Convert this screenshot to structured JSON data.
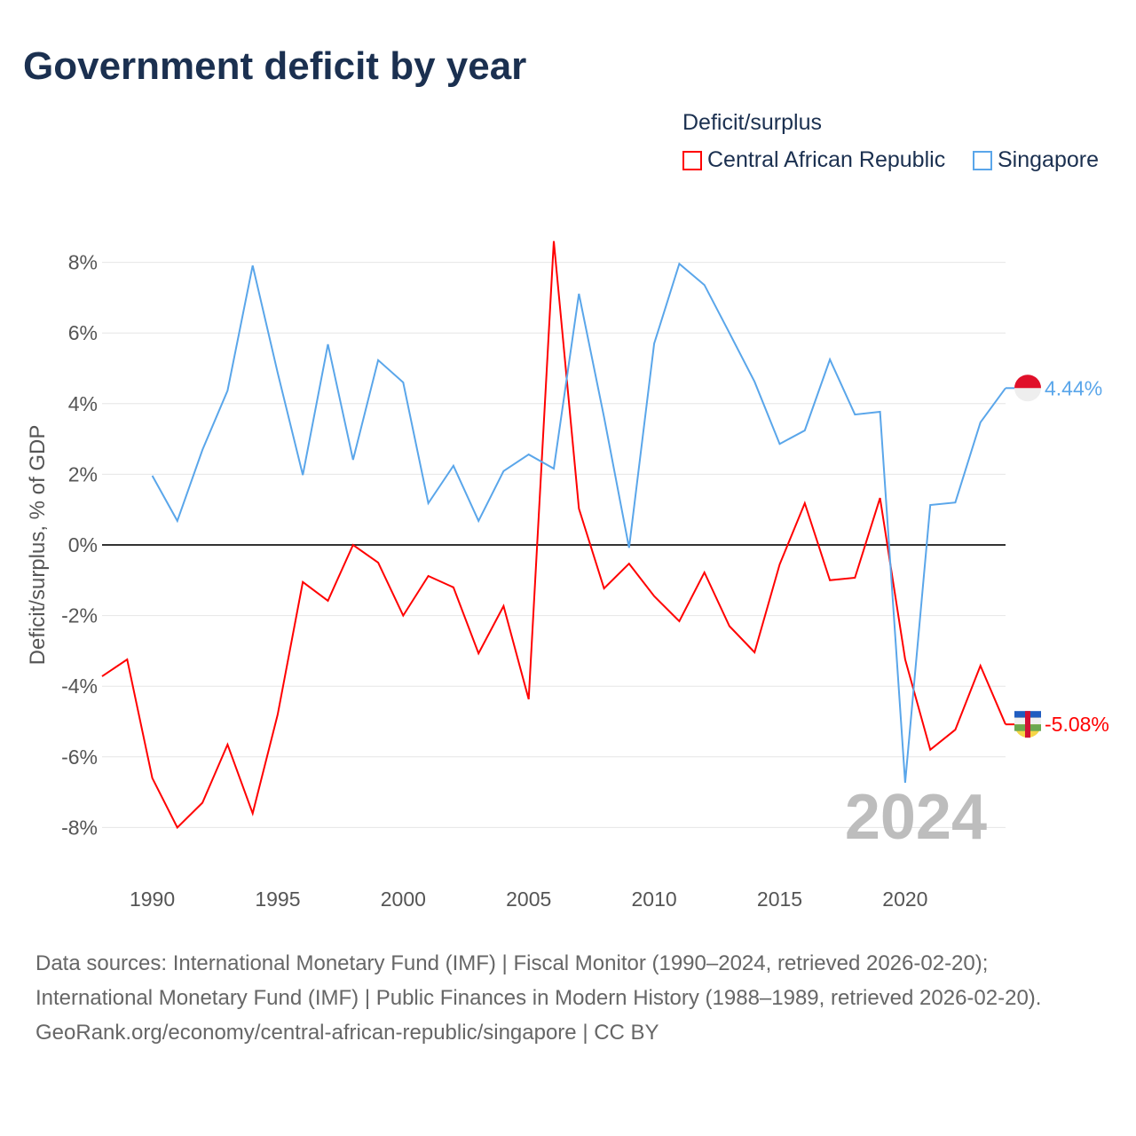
{
  "title": "Government deficit by year",
  "legend": {
    "title": "Deficit/surplus",
    "items": [
      "Central African Republic",
      "Singapore"
    ]
  },
  "colors": {
    "car": "#ff0000",
    "sgp": "#5aa6ea"
  },
  "footer": {
    "sources": "Data sources: International Monetary Fund (IMF) | Fiscal Monitor (1990–2024, retrieved 2026-02-20); International Monetary Fund (IMF) | Public Finances in Modern History (1988–1989, retrieved 2026-02-20).",
    "link": "GeoRank.org/economy/central-african-republic/singapore | CC BY"
  },
  "chart_data": {
    "type": "line",
    "title": "Government deficit by year",
    "xlabel": "",
    "ylabel": "Deficit/surplus, % of GDP",
    "ylim": [
      -8,
      8
    ],
    "xlim": [
      1988,
      2024
    ],
    "yticks": [
      "8%",
      "6%",
      "4%",
      "2%",
      "0%",
      "-2%",
      "-4%",
      "-6%",
      "-8%"
    ],
    "xticks": [
      "1990",
      "1995",
      "2000",
      "2005",
      "2010",
      "2015",
      "2020"
    ],
    "year_label": "2024",
    "series": [
      {
        "name": "Central African Republic",
        "end_label": "-5.08%",
        "start": 1988,
        "values": [
          -3.72,
          -3.24,
          -6.6,
          -8.0,
          -7.3,
          -5.65,
          -7.6,
          -4.8,
          -1.05,
          -1.58,
          0.0,
          -0.5,
          -2.0,
          -0.88,
          -1.2,
          -3.07,
          -1.73,
          -4.37,
          8.6,
          1.03,
          -1.23,
          -0.53,
          -1.45,
          -2.16,
          -0.78,
          -2.3,
          -3.04,
          -0.55,
          1.18,
          -1.0,
          -0.93,
          1.33,
          -3.24,
          -5.8,
          -5.23,
          -3.42,
          -5.08
        ]
      },
      {
        "name": "Singapore",
        "end_label": "4.44%",
        "start": 1990,
        "values": [
          1.96,
          0.68,
          2.69,
          4.37,
          7.91,
          4.87,
          1.98,
          5.68,
          2.41,
          5.23,
          4.6,
          1.18,
          2.24,
          0.68,
          2.09,
          2.56,
          2.16,
          7.11,
          3.62,
          -0.08,
          5.7,
          7.96,
          7.36,
          6.0,
          4.62,
          2.86,
          3.24,
          5.25,
          3.69,
          3.77,
          -6.73,
          1.13,
          1.2,
          3.47,
          4.44
        ]
      }
    ]
  }
}
